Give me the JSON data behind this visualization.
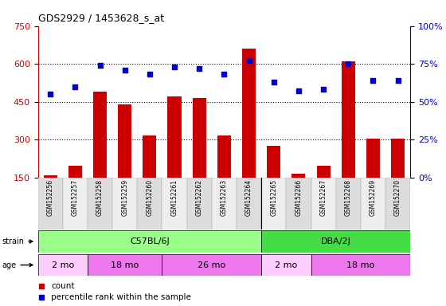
{
  "title": "GDS2929 / 1453628_s_at",
  "samples": [
    "GSM152256",
    "GSM152257",
    "GSM152258",
    "GSM152259",
    "GSM152260",
    "GSM152261",
    "GSM152262",
    "GSM152263",
    "GSM152264",
    "GSM152265",
    "GSM152266",
    "GSM152267",
    "GSM152268",
    "GSM152269",
    "GSM152270"
  ],
  "counts": [
    160,
    195,
    490,
    440,
    315,
    470,
    465,
    315,
    660,
    275,
    165,
    195,
    610,
    305,
    305
  ],
  "percentile_ranks": [
    55,
    60,
    74,
    71,
    68,
    73,
    72,
    68,
    77,
    63,
    57,
    58,
    75,
    64,
    64
  ],
  "bar_color": "#cc0000",
  "dot_color": "#0000cc",
  "ylim_left": [
    150,
    750
  ],
  "ylim_right": [
    0,
    100
  ],
  "yticks_left": [
    150,
    300,
    450,
    600,
    750
  ],
  "yticks_right": [
    0,
    25,
    50,
    75,
    100
  ],
  "strain_groups": [
    {
      "label": "C57BL/6J",
      "start": 0,
      "end": 8,
      "color": "#99ff88"
    },
    {
      "label": "DBA/2J",
      "start": 9,
      "end": 14,
      "color": "#44dd44"
    }
  ],
  "age_groups": [
    {
      "label": "2 mo",
      "start": 0,
      "end": 1,
      "color": "#ffccff"
    },
    {
      "label": "18 mo",
      "start": 2,
      "end": 4,
      "color": "#ee77ee"
    },
    {
      "label": "26 mo",
      "start": 5,
      "end": 8,
      "color": "#ee77ee"
    },
    {
      "label": "2 mo",
      "start": 9,
      "end": 10,
      "color": "#ffccff"
    },
    {
      "label": "18 mo",
      "start": 11,
      "end": 14,
      "color": "#ee77ee"
    }
  ],
  "legend_count_label": "count",
  "legend_pct_label": "percentile rank within the sample",
  "tick_color_left": "#cc0000",
  "tick_color_right": "#0000cc",
  "grid_yticks": [
    300,
    450,
    600
  ]
}
